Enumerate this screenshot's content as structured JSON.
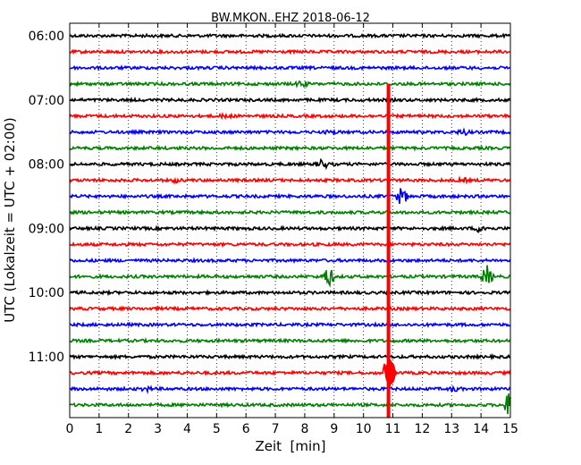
{
  "chart_data": {
    "type": "line",
    "title": "BW.MKON..EHZ 2018-06-12",
    "xlabel": "Zeit  [min]",
    "ylabel": "UTC (Lokalzeit = UTC + 02:00)",
    "xlim": [
      0,
      15
    ],
    "x_ticks": [
      "0",
      "1",
      "2",
      "3",
      "4",
      "5",
      "6",
      "7",
      "8",
      "9",
      "10",
      "11",
      "12",
      "13",
      "14",
      "15"
    ],
    "y_tick_labels": [
      "06:00",
      "07:00",
      "08:00",
      "09:00",
      "10:00",
      "11:00"
    ],
    "grid": true,
    "trace_colors": [
      "#000000",
      "#ff0000",
      "#0000ff",
      "#008000"
    ],
    "series": [
      {
        "start": "06:00",
        "color": "#000000",
        "events": []
      },
      {
        "start": "06:15",
        "color": "#ff0000",
        "events": []
      },
      {
        "start": "06:30",
        "color": "#0000ff",
        "events": []
      },
      {
        "start": "06:45",
        "color": "#008000",
        "events": [
          {
            "t": 7.9,
            "amp": 0.35
          }
        ]
      },
      {
        "start": "07:00",
        "color": "#000000",
        "events": []
      },
      {
        "start": "07:15",
        "color": "#ff0000",
        "events": [
          {
            "t": 5.3,
            "amp": 0.2
          }
        ]
      },
      {
        "start": "07:30",
        "color": "#0000ff",
        "events": [
          {
            "t": 8.9,
            "amp": 0.2
          },
          {
            "t": 13.4,
            "amp": 0.3
          }
        ]
      },
      {
        "start": "07:45",
        "color": "#008000",
        "events": []
      },
      {
        "start": "08:00",
        "color": "#000000",
        "events": [
          {
            "t": 8.6,
            "amp": 0.6
          }
        ]
      },
      {
        "start": "08:15",
        "color": "#ff0000",
        "events": [
          {
            "t": 3.6,
            "amp": 0.2
          },
          {
            "t": 13.4,
            "amp": 0.2
          }
        ]
      },
      {
        "start": "08:30",
        "color": "#0000ff",
        "events": [
          {
            "t": 11.3,
            "amp": 1.1
          }
        ]
      },
      {
        "start": "08:45",
        "color": "#008000",
        "events": []
      },
      {
        "start": "09:00",
        "color": "#000000",
        "events": [
          {
            "t": 14.0,
            "amp": 0.5
          }
        ]
      },
      {
        "start": "09:15",
        "color": "#ff0000",
        "events": []
      },
      {
        "start": "09:30",
        "color": "#0000ff",
        "events": []
      },
      {
        "start": "09:45",
        "color": "#008000",
        "events": [
          {
            "t": 8.8,
            "amp": 1.3
          },
          {
            "t": 14.2,
            "amp": 1.3
          }
        ]
      },
      {
        "start": "10:00",
        "color": "#000000",
        "events": []
      },
      {
        "start": "10:15",
        "color": "#ff0000",
        "events": []
      },
      {
        "start": "10:30",
        "color": "#0000ff",
        "events": []
      },
      {
        "start": "10:45",
        "color": "#008000",
        "events": []
      },
      {
        "start": "11:00",
        "color": "#000000",
        "events": []
      },
      {
        "start": "11:15",
        "color": "#ff0000",
        "events": [
          {
            "t": 10.85,
            "amp": 2.2
          }
        ]
      },
      {
        "start": "11:30",
        "color": "#0000ff",
        "events": [
          {
            "t": 2.6,
            "amp": 0.25
          },
          {
            "t": 13.1,
            "amp": 0.25
          }
        ]
      },
      {
        "start": "11:45",
        "color": "#008000",
        "events": [
          {
            "t": 14.95,
            "amp": 1.5
          }
        ]
      }
    ],
    "large_event": {
      "t": 10.85,
      "from_series": 3,
      "to_series": 23,
      "color": "#ff0000"
    }
  }
}
